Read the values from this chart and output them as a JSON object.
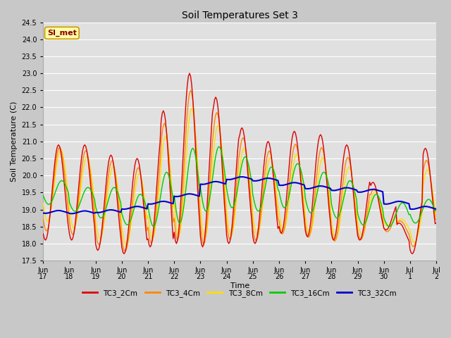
{
  "title": "Soil Temperatures Set 3",
  "xlabel": "Time",
  "ylabel": "Soil Temperature (C)",
  "ylim": [
    17.5,
    24.5
  ],
  "xlim": [
    0,
    360
  ],
  "figsize": [
    6.4,
    4.8
  ],
  "dpi": 100,
  "fig_bg_color": "#c8c8c8",
  "plot_bg_color": "#e0e0e0",
  "grid_color": "#ffffff",
  "annotation_text": "SI_met",
  "annotation_bg": "#ffffaa",
  "annotation_border": "#cc9900",
  "colors": {
    "TC3_2Cm": "#dd0000",
    "TC3_4Cm": "#ff8800",
    "TC3_8Cm": "#ffdd00",
    "TC3_16Cm": "#00cc00",
    "TC3_32Cm": "#0000cc"
  },
  "xtick_labels": [
    "Jun\n17",
    "Jun\n18",
    "Jun\n19",
    "Jun\n20",
    "Jun\n21",
    "Jun\n22",
    "Jun\n23",
    "Jun\n24",
    "Jun\n25",
    "Jun\n26",
    "Jun\n27",
    "Jun\n28",
    "Jun\n29",
    "Jun\n30",
    "Jul\n1",
    "Jul\n2"
  ],
  "xtick_positions": [
    0,
    24,
    48,
    72,
    96,
    120,
    144,
    168,
    192,
    216,
    240,
    264,
    288,
    312,
    336,
    360
  ],
  "ytick_vals": [
    17.5,
    18.0,
    18.5,
    19.0,
    19.5,
    20.0,
    20.5,
    21.0,
    21.5,
    22.0,
    22.5,
    23.0,
    23.5,
    24.0,
    24.5
  ]
}
